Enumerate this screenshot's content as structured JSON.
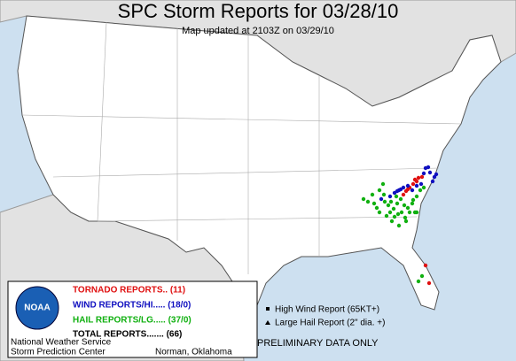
{
  "header": {
    "title": "SPC Storm Reports for 03/28/10",
    "subtitle": "Map updated at 2103Z on 03/29/10"
  },
  "legend": {
    "items": [
      {
        "label": "TORNADO REPORTS.. (11)",
        "color": "#e01010"
      },
      {
        "label": "WIND REPORTS/HI..... (18/0)",
        "color": "#1010c0"
      },
      {
        "label": "HAIL REPORTS/LG..... (37/0)",
        "color": "#10b010"
      }
    ],
    "total": "TOTAL REPORTS....... (66)",
    "logo": "NOAA",
    "agency": [
      "National Weather Service",
      "Storm Prediction Center"
    ],
    "location": "Norman, Oklahoma"
  },
  "key": [
    "High Wind Report (65KT+)",
    "Large Hail Report (2\" dia. +)"
  ],
  "notice": "PRELIMINARY DATA ONLY"
}
